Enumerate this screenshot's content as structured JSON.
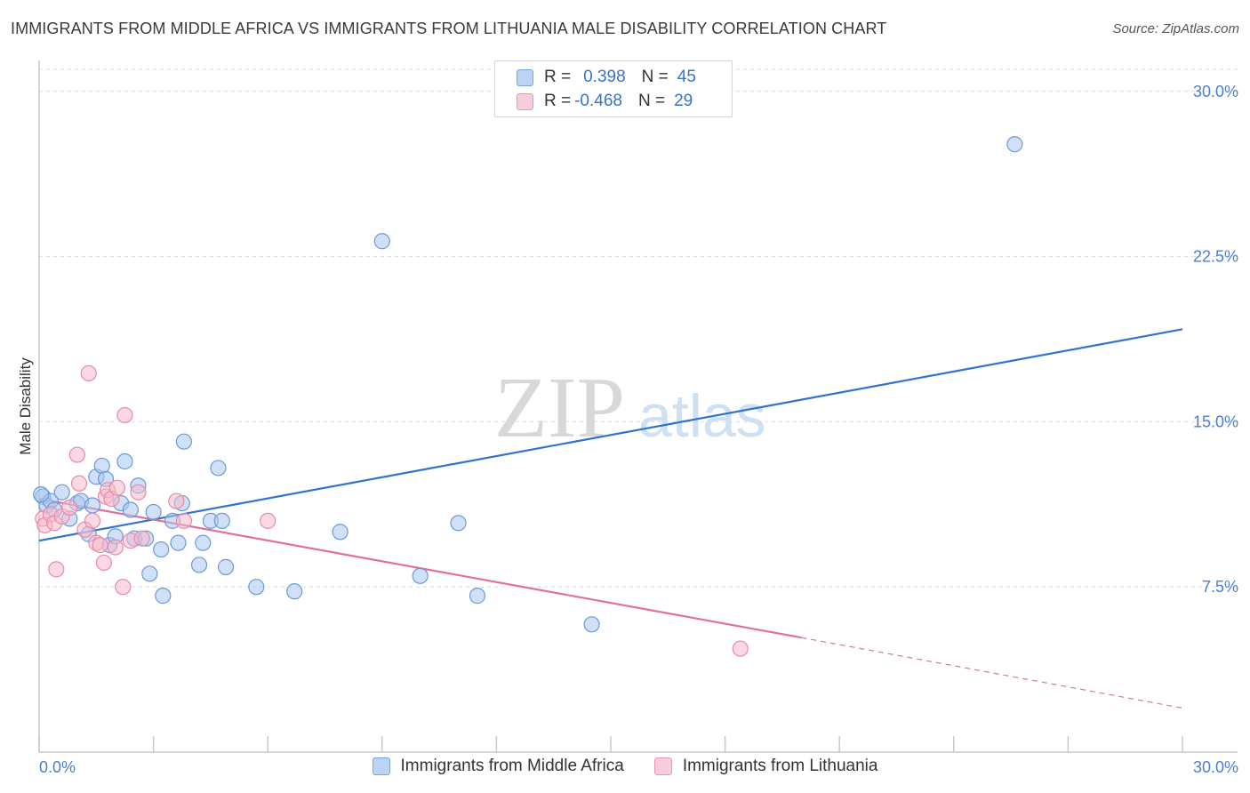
{
  "header": {
    "title": "IMMIGRANTS FROM MIDDLE AFRICA VS IMMIGRANTS FROM LITHUANIA MALE DISABILITY CORRELATION CHART",
    "source": "Source: ZipAtlas.com"
  },
  "watermark": {
    "zip": "ZIP",
    "atlas": "atlas"
  },
  "legend": {
    "rows": [
      {
        "r_label": "R =",
        "r_value": "0.398",
        "n_label": "N =",
        "n_value": "45"
      },
      {
        "r_label": "R =",
        "r_value": "-0.468",
        "n_label": "N =",
        "n_value": "29"
      }
    ]
  },
  "colors": {
    "blue_fill": "#a9c7ef",
    "blue_stroke": "#6a9ad8",
    "blue_line": "#2f73cc",
    "pink_fill": "#f6b9cc",
    "pink_stroke": "#e88aa8",
    "pink_line": "#e0709a",
    "grid": "#dedede",
    "tick_text": "#4a7fd0"
  },
  "chart_data": {
    "type": "scatter",
    "title": "IMMIGRANTS FROM MIDDLE AFRICA VS IMMIGRANTS FROM LITHUANIA MALE DISABILITY CORRELATION CHART",
    "xlabel": "",
    "ylabel": "Male Disability",
    "xlim": [
      0,
      30
    ],
    "ylim": [
      0,
      31
    ],
    "x_tick_labels": [
      "0.0%",
      "30.0%"
    ],
    "y_ticks": [
      7.5,
      15.0,
      22.5,
      30.0
    ],
    "y_tick_labels": [
      "7.5%",
      "15.0%",
      "22.5%",
      "30.0%"
    ],
    "grid": true,
    "legend_position": "top-center",
    "series": [
      {
        "name": "Immigrants from Middle Africa",
        "color": "#a9c7ef",
        "points": [
          [
            0.1,
            11.6
          ],
          [
            0.2,
            11.2
          ],
          [
            0.3,
            11.4
          ],
          [
            0.4,
            11.0
          ],
          [
            0.6,
            11.8
          ],
          [
            0.8,
            10.6
          ],
          [
            1.0,
            11.3
          ],
          [
            1.1,
            11.4
          ],
          [
            1.3,
            9.9
          ],
          [
            1.4,
            11.2
          ],
          [
            1.5,
            12.5
          ],
          [
            1.65,
            13.0
          ],
          [
            1.75,
            12.4
          ],
          [
            1.85,
            9.4
          ],
          [
            2.0,
            9.8
          ],
          [
            2.15,
            11.3
          ],
          [
            2.25,
            13.2
          ],
          [
            2.4,
            11.0
          ],
          [
            2.5,
            9.7
          ],
          [
            2.6,
            12.1
          ],
          [
            2.8,
            9.7
          ],
          [
            2.9,
            8.1
          ],
          [
            3.0,
            10.9
          ],
          [
            3.2,
            9.2
          ],
          [
            3.25,
            7.1
          ],
          [
            3.5,
            10.5
          ],
          [
            3.65,
            9.5
          ],
          [
            3.75,
            11.3
          ],
          [
            3.8,
            14.1
          ],
          [
            4.2,
            8.5
          ],
          [
            4.3,
            9.5
          ],
          [
            4.5,
            10.5
          ],
          [
            4.7,
            12.9
          ],
          [
            4.8,
            10.5
          ],
          [
            4.9,
            8.4
          ],
          [
            5.7,
            7.5
          ],
          [
            6.7,
            7.3
          ],
          [
            7.9,
            10.0
          ],
          [
            9.0,
            23.2
          ],
          [
            10.0,
            8.0
          ],
          [
            11.0,
            10.4
          ],
          [
            11.5,
            7.1
          ],
          [
            14.5,
            5.8
          ],
          [
            25.6,
            27.6
          ],
          [
            0.05,
            11.7
          ]
        ],
        "trend": {
          "x_start": 0,
          "x_end": 30,
          "y_start": 9.6,
          "y_end": 19.2
        }
      },
      {
        "name": "Immigrants from Lithuania",
        "color": "#f6b9cc",
        "points": [
          [
            0.1,
            10.6
          ],
          [
            0.15,
            10.3
          ],
          [
            0.3,
            10.8
          ],
          [
            0.4,
            10.4
          ],
          [
            0.45,
            8.3
          ],
          [
            0.6,
            10.7
          ],
          [
            0.8,
            11.1
          ],
          [
            1.0,
            13.5
          ],
          [
            1.05,
            12.2
          ],
          [
            1.2,
            10.1
          ],
          [
            1.3,
            17.2
          ],
          [
            1.4,
            10.5
          ],
          [
            1.5,
            9.5
          ],
          [
            1.6,
            9.4
          ],
          [
            1.7,
            8.6
          ],
          [
            1.75,
            11.6
          ],
          [
            1.8,
            11.9
          ],
          [
            1.9,
            11.5
          ],
          [
            2.0,
            9.3
          ],
          [
            2.05,
            12.0
          ],
          [
            2.2,
            7.5
          ],
          [
            2.25,
            15.3
          ],
          [
            2.4,
            9.6
          ],
          [
            2.6,
            11.8
          ],
          [
            2.7,
            9.7
          ],
          [
            3.6,
            11.4
          ],
          [
            3.8,
            10.5
          ],
          [
            6.0,
            10.5
          ],
          [
            18.4,
            4.7
          ]
        ],
        "trend": {
          "x_start": 0,
          "x_end": 20,
          "y_start": 11.5,
          "y_end": 5.2,
          "dashed_to_x": 30,
          "dashed_to_y": 2.0
        }
      }
    ]
  }
}
